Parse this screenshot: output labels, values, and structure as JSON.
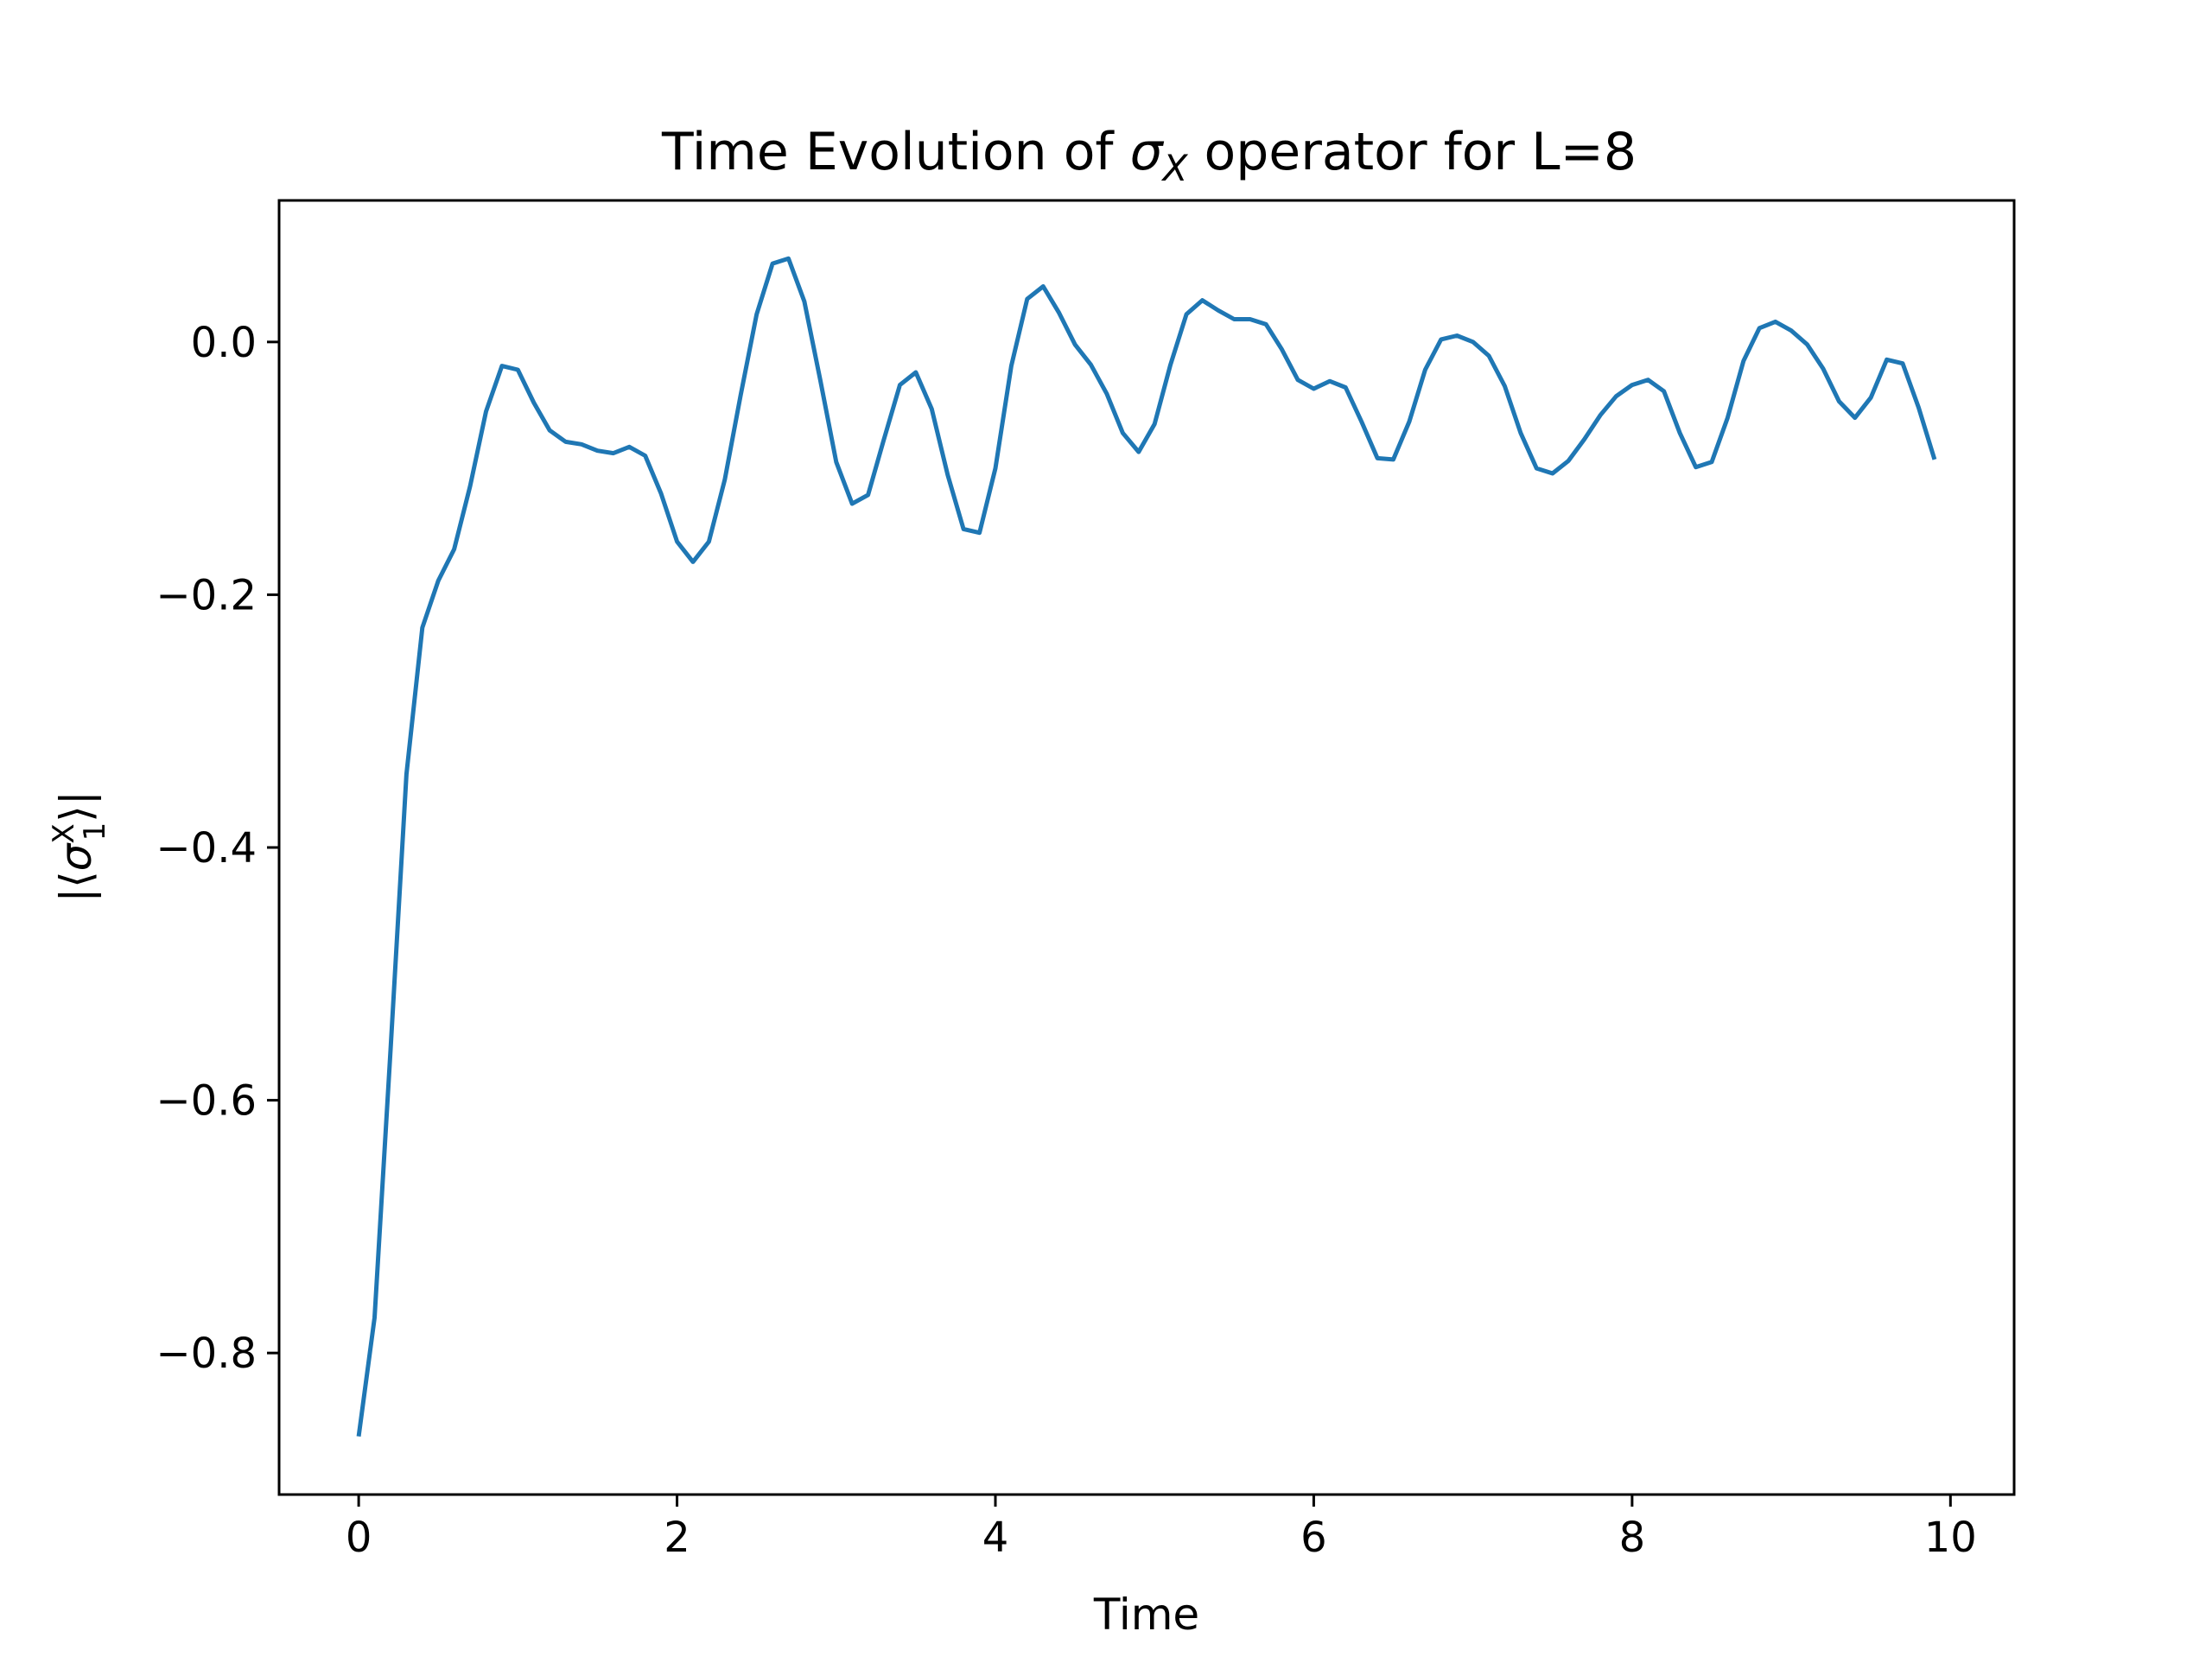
{
  "chart_data": {
    "type": "line",
    "title_parts": {
      "prefix": "Time Evolution of ",
      "symbol": "σ",
      "subscript": "X",
      "suffix": " operator for L=8"
    },
    "xlabel": "Time",
    "ylabel_parts": {
      "open": "|⟨",
      "symbol": "σ",
      "superscript": "X",
      "subscript": "1",
      "close": "⟩|"
    },
    "xlim": [
      -0.5,
      10.4
    ],
    "ylim": [
      -0.912,
      0.112
    ],
    "xticks": [
      0,
      2,
      4,
      6,
      8,
      10
    ],
    "xtick_labels": [
      "0",
      "2",
      "4",
      "6",
      "8",
      "10"
    ],
    "yticks": [
      0.0,
      -0.2,
      -0.4,
      -0.6,
      -0.8
    ],
    "ytick_labels": [
      "0.0",
      "−0.2",
      "−0.4",
      "−0.6",
      "−0.8"
    ],
    "grid": false,
    "series": [
      {
        "color": "#1f77b4",
        "x": [
          0.0,
          0.1,
          0.2,
          0.3,
          0.4,
          0.5,
          0.6,
          0.7,
          0.8,
          0.9,
          1.0,
          1.1,
          1.2,
          1.3,
          1.4,
          1.5,
          1.6,
          1.7,
          1.8,
          1.9,
          2.0,
          2.1,
          2.2,
          2.3,
          2.4,
          2.5,
          2.6,
          2.7,
          2.8,
          2.9,
          3.0,
          3.1,
          3.2,
          3.3,
          3.4,
          3.5,
          3.6,
          3.7,
          3.8,
          3.9,
          4.0,
          4.1,
          4.2,
          4.3,
          4.4,
          4.5,
          4.6,
          4.7,
          4.8,
          4.9,
          5.0,
          5.1,
          5.2,
          5.3,
          5.4,
          5.5,
          5.6,
          5.7,
          5.8,
          5.9,
          6.0,
          6.1,
          6.2,
          6.3,
          6.4,
          6.5,
          6.6,
          6.7,
          6.8,
          6.9,
          7.0,
          7.1,
          7.2,
          7.3,
          7.4,
          7.5,
          7.6,
          7.7,
          7.8,
          7.9,
          8.0,
          8.1,
          8.2,
          8.3,
          8.4,
          8.5,
          8.6,
          8.7,
          8.8,
          8.9,
          9.0,
          9.1,
          9.2,
          9.3,
          9.4,
          9.5,
          9.6,
          9.7,
          9.8,
          9.9
        ],
        "y": [
          -0.866,
          -0.772,
          -0.56,
          -0.342,
          -0.226,
          -0.189,
          -0.164,
          -0.114,
          -0.055,
          -0.019,
          -0.022,
          -0.048,
          -0.07,
          -0.079,
          -0.081,
          -0.086,
          -0.088,
          -0.083,
          -0.09,
          -0.12,
          -0.158,
          -0.174,
          -0.158,
          -0.109,
          -0.042,
          0.022,
          0.062,
          0.066,
          0.032,
          -0.03,
          -0.095,
          -0.128,
          -0.121,
          -0.077,
          -0.034,
          -0.024,
          -0.053,
          -0.105,
          -0.148,
          -0.151,
          -0.1,
          -0.019,
          0.034,
          0.044,
          0.023,
          -0.002,
          -0.018,
          -0.041,
          -0.072,
          -0.087,
          -0.065,
          -0.018,
          0.022,
          0.033,
          0.025,
          0.018,
          0.018,
          0.014,
          -0.006,
          -0.03,
          -0.037,
          -0.031,
          -0.036,
          -0.063,
          -0.092,
          -0.093,
          -0.063,
          -0.022,
          0.002,
          0.005,
          0.0,
          -0.011,
          -0.035,
          -0.072,
          -0.1,
          -0.104,
          -0.094,
          -0.077,
          -0.058,
          -0.043,
          -0.034,
          -0.03,
          -0.039,
          -0.072,
          -0.099,
          -0.095,
          -0.06,
          -0.015,
          0.011,
          0.016,
          0.009,
          -0.002,
          -0.021,
          -0.047,
          -0.06,
          -0.044,
          -0.014,
          -0.017,
          -0.052,
          -0.093
        ]
      }
    ]
  }
}
